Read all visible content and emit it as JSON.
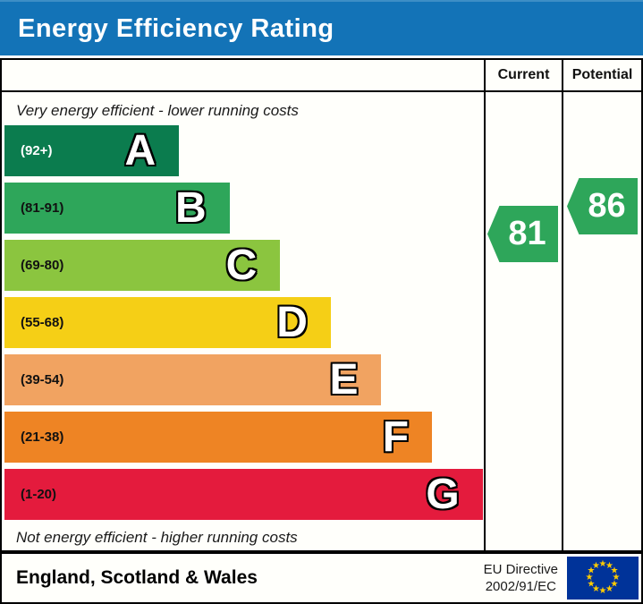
{
  "title": "Energy Efficiency Rating",
  "columns": {
    "current": "Current",
    "potential": "Potential"
  },
  "top_note": "Very energy efficient - lower running costs",
  "bottom_note": "Not energy efficient - higher running costs",
  "bands": [
    {
      "letter": "A",
      "range": "(92+)",
      "color": "#0b7c4e",
      "range_color": "#ffffff",
      "width_pct": 36.2
    },
    {
      "letter": "B",
      "range": "(81-91)",
      "color": "#2ea65a",
      "range_color": "#111111",
      "width_pct": 46.7
    },
    {
      "letter": "C",
      "range": "(69-80)",
      "color": "#8bc53f",
      "range_color": "#111111",
      "width_pct": 57.2
    },
    {
      "letter": "D",
      "range": "(55-68)",
      "color": "#f5cf16",
      "range_color": "#111111",
      "width_pct": 67.7
    },
    {
      "letter": "E",
      "range": "(39-54)",
      "color": "#f1a361",
      "range_color": "#111111",
      "width_pct": 78.2
    },
    {
      "letter": "F",
      "range": "(21-38)",
      "color": "#ee8424",
      "range_color": "#111111",
      "width_pct": 88.7
    },
    {
      "letter": "G",
      "range": "(1-20)",
      "color": "#e41b3d",
      "range_color": "#111111",
      "width_pct": 99.2
    }
  ],
  "current": {
    "value": "81",
    "color": "#2ea65a"
  },
  "potential": {
    "value": "86",
    "color": "#2ea65a"
  },
  "footer": {
    "region": "England, Scotland & Wales",
    "directive_line1": "EU Directive",
    "directive_line2": "2002/91/EC"
  },
  "colors": {
    "title_bg": "#1373b7",
    "title_text": "#ffffff",
    "border": "#000000",
    "eu_flag_bg": "#003399",
    "eu_star": "#ffcc00"
  },
  "chart_data": {
    "type": "bar",
    "title": "Energy Efficiency Rating",
    "categories": [
      "A (92+)",
      "B (81-91)",
      "C (69-80)",
      "D (55-68)",
      "E (39-54)",
      "F (21-38)",
      "G (1-20)"
    ],
    "band_colors": [
      "#0b7c4e",
      "#2ea65a",
      "#8bc53f",
      "#f5cf16",
      "#f1a361",
      "#ee8424",
      "#e41b3d"
    ],
    "series": [
      {
        "name": "Current",
        "value": 81,
        "band": "B"
      },
      {
        "name": "Potential",
        "value": 86,
        "band": "B"
      }
    ],
    "value_range": [
      1,
      100
    ],
    "notes": [
      "Very energy efficient - lower running costs",
      "Not energy efficient - higher running costs"
    ],
    "region": "England, Scotland & Wales",
    "directive": "EU Directive 2002/91/EC"
  }
}
